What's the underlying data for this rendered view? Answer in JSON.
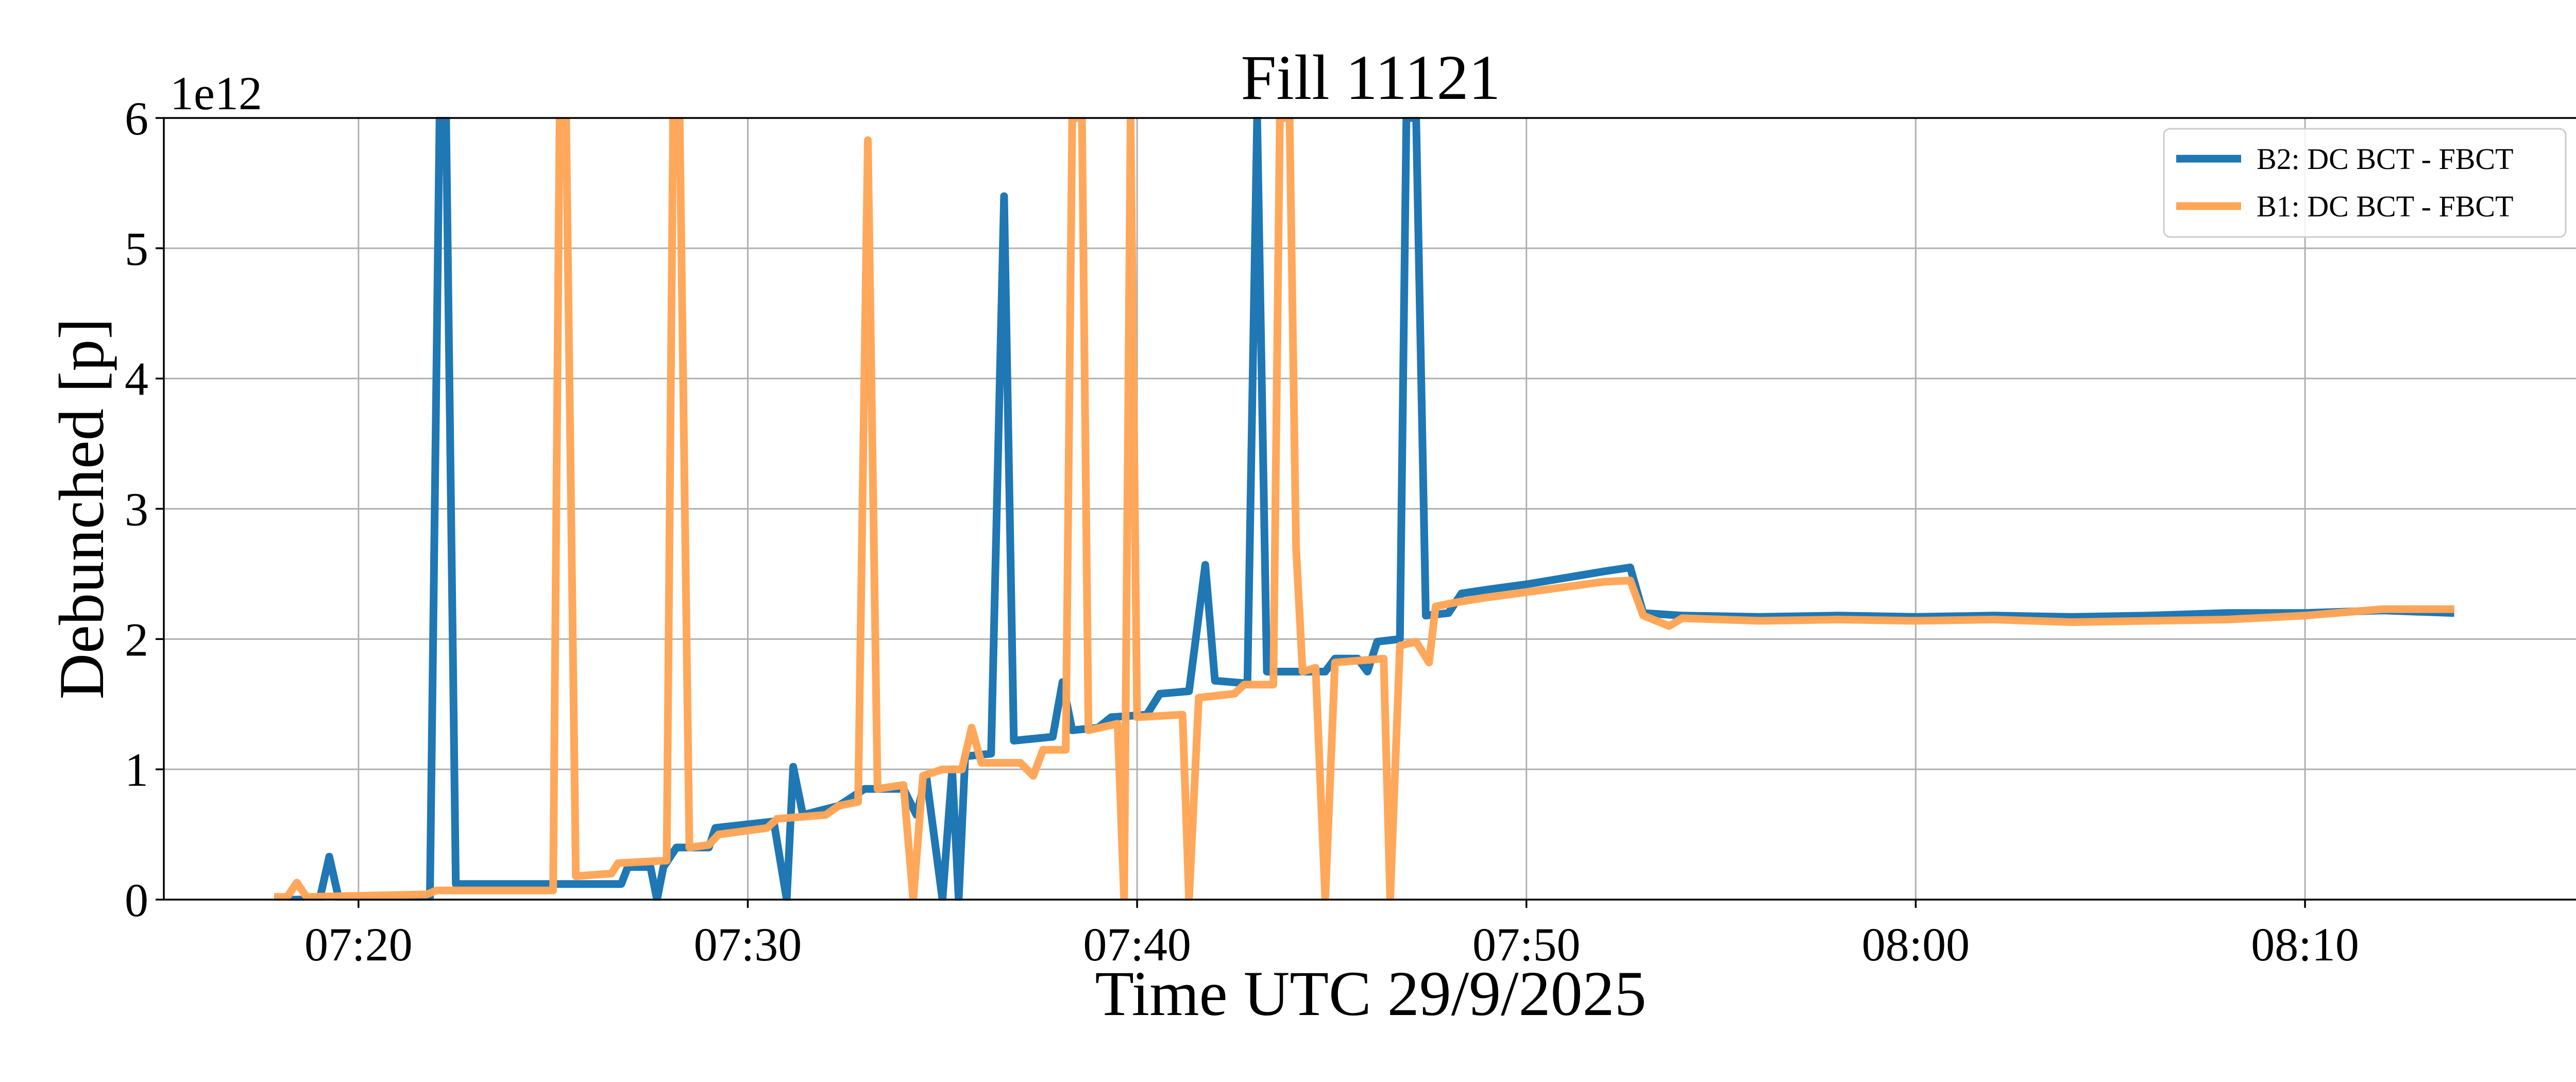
{
  "chart_data": {
    "type": "line",
    "title": "Fill 11121",
    "xlabel": "Time UTC 29/9/2025",
    "ylabel": "Debunched [p]",
    "y_offset_text": "1e12",
    "xlim": [
      "07:15:00",
      "08:17:00"
    ],
    "ylim": [
      0,
      6
    ],
    "x_ticks": [
      "07:20",
      "07:30",
      "07:40",
      "07:50",
      "08:00",
      "08:10"
    ],
    "y_ticks": [
      "0",
      "1",
      "2",
      "3",
      "4",
      "5",
      "6"
    ],
    "grid": true,
    "legend_position": "top-right",
    "series": [
      {
        "name": "B2: DC BCT - FBCT",
        "color": "#1f77b4",
        "points": [
          [
            "07:17:50",
            0.0
          ],
          [
            "07:19:00",
            0.0
          ],
          [
            "07:19:15",
            0.33
          ],
          [
            "07:19:30",
            0.0
          ],
          [
            "07:21:50",
            0.0
          ],
          [
            "07:22:05",
            6.0
          ],
          [
            "07:22:15",
            6.0
          ],
          [
            "07:22:30",
            0.12
          ],
          [
            "07:26:45",
            0.12
          ],
          [
            "07:26:55",
            0.25
          ],
          [
            "07:27:30",
            0.25
          ],
          [
            "07:27:40",
            0.0
          ],
          [
            "07:27:50",
            0.25
          ],
          [
            "07:28:10",
            0.4
          ],
          [
            "07:29:00",
            0.4
          ],
          [
            "07:29:10",
            0.55
          ],
          [
            "07:30:40",
            0.6
          ],
          [
            "07:31:00",
            0.0
          ],
          [
            "07:31:10",
            1.02
          ],
          [
            "07:31:25",
            0.65
          ],
          [
            "07:32:20",
            0.72
          ],
          [
            "07:33:00",
            0.85
          ],
          [
            "07:34:00",
            0.85
          ],
          [
            "07:34:20",
            0.65
          ],
          [
            "07:34:35",
            0.95
          ],
          [
            "07:35:00",
            0.0
          ],
          [
            "07:35:15",
            1.0
          ],
          [
            "07:35:25",
            0.0
          ],
          [
            "07:35:35",
            1.1
          ],
          [
            "07:36:15",
            1.12
          ],
          [
            "07:36:35",
            5.4
          ],
          [
            "07:36:50",
            1.22
          ],
          [
            "07:37:50",
            1.25
          ],
          [
            "07:38:05",
            1.67
          ],
          [
            "07:38:20",
            1.3
          ],
          [
            "07:39:00",
            1.32
          ],
          [
            "07:39:20",
            1.4
          ],
          [
            "07:40:15",
            1.42
          ],
          [
            "07:40:35",
            1.58
          ],
          [
            "07:41:20",
            1.6
          ],
          [
            "07:41:45",
            2.57
          ],
          [
            "07:42:00",
            1.68
          ],
          [
            "07:42:50",
            1.66
          ],
          [
            "07:43:05",
            6.0
          ],
          [
            "07:43:20",
            1.75
          ],
          [
            "07:44:50",
            1.75
          ],
          [
            "07:45:05",
            1.85
          ],
          [
            "07:45:40",
            1.85
          ],
          [
            "07:45:55",
            1.75
          ],
          [
            "07:46:10",
            1.98
          ],
          [
            "07:46:45",
            2.0
          ],
          [
            "07:46:55",
            6.0
          ],
          [
            "07:47:10",
            6.0
          ],
          [
            "07:47:25",
            2.18
          ],
          [
            "07:48:00",
            2.2
          ],
          [
            "07:48:20",
            2.35
          ],
          [
            "07:49:00",
            2.38
          ],
          [
            "07:50:00",
            2.42
          ],
          [
            "07:51:00",
            2.47
          ],
          [
            "07:52:00",
            2.52
          ],
          [
            "07:52:40",
            2.55
          ],
          [
            "07:53:00",
            2.2
          ],
          [
            "07:54:00",
            2.18
          ],
          [
            "07:56:00",
            2.17
          ],
          [
            "07:58:00",
            2.18
          ],
          [
            "08:00:00",
            2.17
          ],
          [
            "08:02:00",
            2.18
          ],
          [
            "08:04:00",
            2.17
          ],
          [
            "08:06:00",
            2.18
          ],
          [
            "08:08:00",
            2.2
          ],
          [
            "08:10:00",
            2.2
          ],
          [
            "08:12:00",
            2.22
          ],
          [
            "08:13:50",
            2.2
          ]
        ]
      },
      {
        "name": "B1: DC BCT - FBCT",
        "color": "#ffa556",
        "points": [
          [
            "07:17:50",
            0.02
          ],
          [
            "07:18:10",
            0.02
          ],
          [
            "07:18:25",
            0.13
          ],
          [
            "07:18:40",
            0.02
          ],
          [
            "07:21:45",
            0.04
          ],
          [
            "07:22:00",
            0.07
          ],
          [
            "07:25:00",
            0.07
          ],
          [
            "07:25:10",
            6.0
          ],
          [
            "07:25:20",
            6.0
          ],
          [
            "07:25:35",
            0.18
          ],
          [
            "07:26:30",
            0.2
          ],
          [
            "07:26:40",
            0.28
          ],
          [
            "07:27:55",
            0.3
          ],
          [
            "07:28:05",
            6.0
          ],
          [
            "07:28:15",
            6.0
          ],
          [
            "07:28:30",
            0.4
          ],
          [
            "07:29:00",
            0.42
          ],
          [
            "07:29:15",
            0.5
          ],
          [
            "07:30:30",
            0.55
          ],
          [
            "07:30:45",
            0.62
          ],
          [
            "07:32:00",
            0.65
          ],
          [
            "07:32:20",
            0.72
          ],
          [
            "07:32:50",
            0.75
          ],
          [
            "07:33:05",
            5.83
          ],
          [
            "07:33:20",
            0.85
          ],
          [
            "07:34:00",
            0.88
          ],
          [
            "07:34:15",
            0.0
          ],
          [
            "07:34:30",
            0.95
          ],
          [
            "07:35:00",
            1.0
          ],
          [
            "07:35:30",
            1.0
          ],
          [
            "07:35:45",
            1.32
          ],
          [
            "07:36:00",
            1.05
          ],
          [
            "07:37:00",
            1.05
          ],
          [
            "07:37:20",
            0.95
          ],
          [
            "07:37:35",
            1.15
          ],
          [
            "07:38:10",
            1.15
          ],
          [
            "07:38:20",
            6.0
          ],
          [
            "07:38:35",
            6.0
          ],
          [
            "07:38:45",
            1.3
          ],
          [
            "07:39:30",
            1.35
          ],
          [
            "07:39:40",
            0.0
          ],
          [
            "07:39:50",
            6.0
          ],
          [
            "07:40:00",
            1.4
          ],
          [
            "07:41:10",
            1.42
          ],
          [
            "07:41:20",
            0.0
          ],
          [
            "07:41:35",
            1.55
          ],
          [
            "07:42:30",
            1.58
          ],
          [
            "07:42:45",
            1.65
          ],
          [
            "07:43:30",
            1.65
          ],
          [
            "07:43:40",
            6.0
          ],
          [
            "07:43:55",
            6.0
          ],
          [
            "07:44:05",
            2.7
          ],
          [
            "07:44:15",
            1.75
          ],
          [
            "07:44:35",
            1.78
          ],
          [
            "07:44:50",
            0.0
          ],
          [
            "07:45:05",
            1.82
          ],
          [
            "07:46:20",
            1.85
          ],
          [
            "07:46:30",
            0.0
          ],
          [
            "07:46:45",
            1.95
          ],
          [
            "07:47:10",
            1.98
          ],
          [
            "07:47:30",
            1.82
          ],
          [
            "07:47:40",
            2.25
          ],
          [
            "07:48:10",
            2.28
          ],
          [
            "07:49:00",
            2.32
          ],
          [
            "07:50:00",
            2.36
          ],
          [
            "07:51:00",
            2.4
          ],
          [
            "07:52:00",
            2.44
          ],
          [
            "07:52:40",
            2.45
          ],
          [
            "07:53:00",
            2.18
          ],
          [
            "07:53:40",
            2.1
          ],
          [
            "07:54:00",
            2.16
          ],
          [
            "07:56:00",
            2.14
          ],
          [
            "07:58:00",
            2.15
          ],
          [
            "08:00:00",
            2.14
          ],
          [
            "08:02:00",
            2.15
          ],
          [
            "08:04:00",
            2.13
          ],
          [
            "08:06:00",
            2.14
          ],
          [
            "08:08:00",
            2.15
          ],
          [
            "08:10:00",
            2.18
          ],
          [
            "08:12:00",
            2.23
          ],
          [
            "08:13:50",
            2.23
          ]
        ]
      }
    ]
  }
}
